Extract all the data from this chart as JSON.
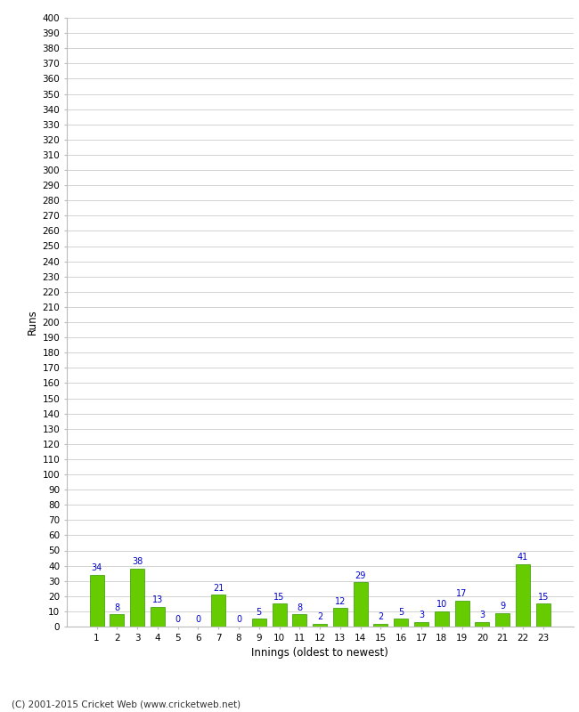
{
  "title": "",
  "xlabel": "Innings (oldest to newest)",
  "ylabel": "Runs",
  "categories": [
    1,
    2,
    3,
    4,
    5,
    6,
    7,
    8,
    9,
    10,
    11,
    12,
    13,
    14,
    15,
    16,
    17,
    18,
    19,
    20,
    21,
    22,
    23
  ],
  "values": [
    34,
    8,
    38,
    13,
    0,
    0,
    21,
    0,
    5,
    15,
    8,
    2,
    12,
    29,
    2,
    5,
    3,
    10,
    17,
    3,
    9,
    41,
    15
  ],
  "bar_color": "#66cc00",
  "bar_edge_color": "#339900",
  "label_color": "#0000cc",
  "background_color": "#ffffff",
  "grid_color": "#cccccc",
  "ylim": [
    0,
    400
  ],
  "footer": "(C) 2001-2015 Cricket Web (www.cricketweb.net)"
}
